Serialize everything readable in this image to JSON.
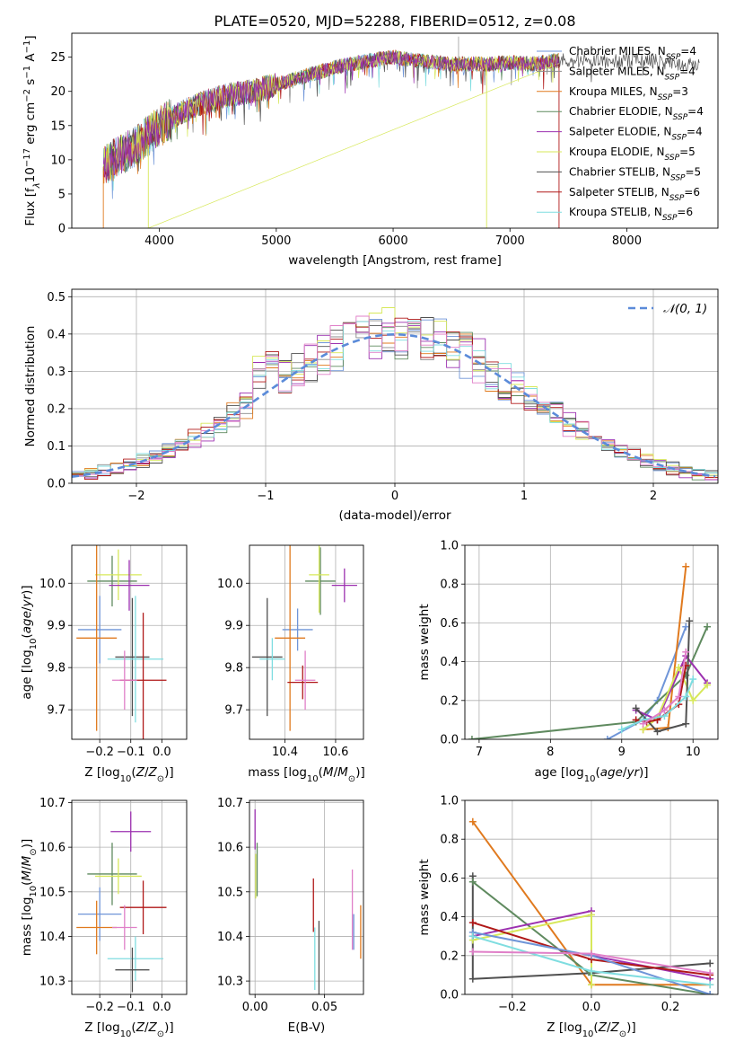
{
  "figure": {
    "title": "PLATE=0520, MJD=52288, FIBERID=0512, z=0.08"
  },
  "colors": {
    "chabrier_miles": "#6f95d8",
    "salpeter_miles": "#8c8c8c",
    "kroupa_miles": "#e07a1f",
    "chabrier_elodie": "#5f8a5f",
    "salpeter_elodie": "#9c30b0",
    "kroupa_elodie": "#d7e85a",
    "chabrier_stelib": "#505050",
    "salpeter_stelib": "#b01818",
    "kroupa_stelib": "#7fdde0",
    "extra_pink": "#e07fc8",
    "norm": "#5b8bd9",
    "grid": "#b0b0b0"
  },
  "chart_data": [
    {
      "id": "spectrum",
      "type": "line",
      "title": "PLATE=0520, MJD=52288, FIBERID=0512, z=0.08",
      "xlabel": "wavelength [Angstrom, rest frame]",
      "ylabel_main": "Flux [f",
      "ylabel_sub1": "λ",
      "ylabel_mid": "10",
      "ylabel_sup1": "−17",
      "ylabel_rest": " erg cm",
      "ylabel_sup2": "−2",
      "ylabel_rest2": " s",
      "ylabel_sup3": "−1",
      "ylabel_rest3": " A",
      "ylabel_sup4": "−1",
      "ylabel_end": "]",
      "xlim": [
        3250,
        8780
      ],
      "ylim": [
        0,
        28.5
      ],
      "xticks": [
        4000,
        5000,
        6000,
        7000,
        8000
      ],
      "yticks": [
        0,
        5,
        10,
        15,
        20,
        25
      ],
      "grid": false,
      "legend_position": "right",
      "legend": [
        {
          "name": "Chabrier MILES, N",
          "sub": "SSP",
          "tail": "=4",
          "color": "#6f95d8"
        },
        {
          "name": "Salpeter MILES, N",
          "sub": "SSP",
          "tail": "=4",
          "color": "#8c8c8c"
        },
        {
          "name": "Kroupa MILES, N",
          "sub": "SSP",
          "tail": "=3",
          "color": "#e07a1f"
        },
        {
          "name": "Chabrier ELODIE, N",
          "sub": "SSP",
          "tail": "=4",
          "color": "#5f8a5f"
        },
        {
          "name": "Salpeter ELODIE, N",
          "sub": "SSP",
          "tail": "=4",
          "color": "#9c30b0"
        },
        {
          "name": "Kroupa ELODIE, N",
          "sub": "SSP",
          "tail": "=5",
          "color": "#d7e85a"
        },
        {
          "name": "Chabrier STELIB, N",
          "sub": "SSP",
          "tail": "=5",
          "color": "#505050"
        },
        {
          "name": "Salpeter STELIB, N",
          "sub": "SSP",
          "tail": "=6",
          "color": "#b01818"
        },
        {
          "name": "Kroupa STELIB, N",
          "sub": "SSP",
          "tail": "=6",
          "color": "#7fdde0"
        }
      ],
      "continuum": [
        [
          3520,
          9
        ],
        [
          3600,
          10
        ],
        [
          3700,
          11
        ],
        [
          3800,
          12
        ],
        [
          3900,
          13.5
        ],
        [
          4000,
          15
        ],
        [
          4100,
          16
        ],
        [
          4200,
          17
        ],
        [
          4400,
          18.5
        ],
        [
          4600,
          19.5
        ],
        [
          4800,
          20
        ],
        [
          5000,
          21
        ],
        [
          5200,
          22
        ],
        [
          5500,
          23.5
        ],
        [
          5800,
          24.5
        ],
        [
          6000,
          25
        ],
        [
          6200,
          24.5
        ],
        [
          6500,
          24
        ],
        [
          6800,
          24
        ],
        [
          7000,
          24.2
        ],
        [
          7200,
          24
        ],
        [
          7400,
          24.5
        ],
        [
          7600,
          24.5
        ],
        [
          7800,
          24.5
        ],
        [
          8000,
          24.5
        ],
        [
          8200,
          24.5
        ],
        [
          8400,
          24
        ],
        [
          8620,
          24
        ]
      ]
    },
    {
      "id": "residuals",
      "type": "histogram",
      "xlabel": "(data-model)/error",
      "ylabel": "Normed distribution",
      "xlim": [
        -2.5,
        2.5
      ],
      "ylim": [
        0,
        0.52
      ],
      "xticks": [
        -2,
        -1,
        0,
        1,
        2
      ],
      "xtick_labels": [
        "−2",
        "−1",
        "0",
        "1",
        "2"
      ],
      "yticks": [
        0.0,
        0.1,
        0.2,
        0.3,
        0.4,
        0.5
      ],
      "ytick_labels": [
        "0.0",
        "0.1",
        "0.2",
        "0.3",
        "0.4",
        "0.5"
      ],
      "grid": true,
      "legend_position": "top-right",
      "legend_label": "𝒩(0, 1)",
      "bin_width": 0.1
    },
    {
      "id": "age_vs_Z",
      "type": "scatter",
      "xlabel_main": "Z [log",
      "xlabel_sub": "10",
      "xlabel_end": "(Z/Z",
      "xlabel_sun": "⊙",
      "xlabel_close": ")]",
      "ylabel_main": "age  [log",
      "ylabel_sub": "10",
      "ylabel_end": "(age/yr)]",
      "xlim": [
        -0.29,
        0.08
      ],
      "ylim": [
        9.63,
        10.09
      ],
      "xticks": [
        -0.2,
        -0.1,
        0.0
      ],
      "xtick_labels": [
        "−0.2",
        "−0.1",
        "0.0"
      ],
      "yticks": [
        9.7,
        9.8,
        9.9,
        10.0
      ],
      "ytick_labels": [
        "9.7",
        "9.8",
        "9.9",
        "10.0"
      ],
      "grid": true,
      "points": [
        {
          "x": -0.16,
          "y": 10.005,
          "xerr": 0.08,
          "yerr": 0.06,
          "color": "#5f8a5f"
        },
        {
          "x": -0.14,
          "y": 10.02,
          "xerr": 0.075,
          "yerr": 0.06,
          "color": "#d7e85a"
        },
        {
          "x": -0.105,
          "y": 9.995,
          "xerr": 0.065,
          "yerr": 0.06,
          "color": "#9c30b0"
        },
        {
          "x": -0.2,
          "y": 9.89,
          "xerr": 0.07,
          "yerr": 0.08,
          "color": "#6f95d8"
        },
        {
          "x": -0.21,
          "y": 9.87,
          "xerr": 0.065,
          "yerr": 0.22,
          "color": "#e07a1f"
        },
        {
          "x": -0.095,
          "y": 9.825,
          "xerr": 0.055,
          "yerr": 0.14,
          "color": "#505050"
        },
        {
          "x": -0.085,
          "y": 9.82,
          "xerr": 0.09,
          "yerr": 0.15,
          "color": "#7fdde0"
        },
        {
          "x": -0.06,
          "y": 9.77,
          "xerr": 0.075,
          "yerr": 0.16,
          "color": "#b01818"
        },
        {
          "x": -0.12,
          "y": 9.77,
          "xerr": 0.04,
          "yerr": 0.07,
          "color": "#e07fc8"
        }
      ]
    },
    {
      "id": "age_vs_mass",
      "type": "scatter",
      "xlabel_main": "mass [log",
      "xlabel_sub": "10",
      "xlabel_end": "(M/M",
      "xlabel_sun": "⊙",
      "xlabel_close": ")]",
      "xlim": [
        10.26,
        10.71
      ],
      "ylim": [
        9.63,
        10.09
      ],
      "xticks": [
        10.4,
        10.6
      ],
      "xtick_labels": [
        "10.4",
        "10.6"
      ],
      "yticks": [
        9.7,
        9.8,
        9.9,
        10.0
      ],
      "ytick_labels": [
        "9.7",
        "9.8",
        "9.9",
        "10.0"
      ],
      "grid": true,
      "points": [
        {
          "x": 10.54,
          "y": 10.005,
          "xerr": 0.06,
          "yerr": 0.08,
          "color": "#5f8a5f"
        },
        {
          "x": 10.535,
          "y": 10.02,
          "xerr": 0.04,
          "yerr": 0.09,
          "color": "#d7e85a"
        },
        {
          "x": 10.635,
          "y": 9.995,
          "xerr": 0.05,
          "yerr": 0.04,
          "color": "#9c30b0"
        },
        {
          "x": 10.45,
          "y": 9.89,
          "xerr": 0.06,
          "yerr": 0.05,
          "color": "#6f95d8"
        },
        {
          "x": 10.42,
          "y": 9.87,
          "xerr": 0.06,
          "yerr": 0.22,
          "color": "#e07a1f"
        },
        {
          "x": 10.33,
          "y": 9.825,
          "xerr": 0.06,
          "yerr": 0.14,
          "color": "#505050"
        },
        {
          "x": 10.35,
          "y": 9.82,
          "xerr": 0.05,
          "yerr": 0.05,
          "color": "#7fdde0"
        },
        {
          "x": 10.47,
          "y": 9.765,
          "xerr": 0.06,
          "yerr": 0.04,
          "color": "#b01818"
        },
        {
          "x": 10.48,
          "y": 9.77,
          "xerr": 0.04,
          "yerr": 0.07,
          "color": "#e07fc8"
        }
      ]
    },
    {
      "id": "mass_weight_vs_age",
      "type": "line",
      "xlabel_main": "age  [log",
      "xlabel_sub": "10",
      "xlabel_end": "(age/yr)]",
      "ylabel": "mass weight",
      "xlim": [
        6.8,
        10.35
      ],
      "ylim": [
        0,
        1.0
      ],
      "xticks": [
        7,
        8,
        9,
        10
      ],
      "xtick_labels": [
        "7",
        "8",
        "9",
        "10"
      ],
      "yticks": [
        0.0,
        0.2,
        0.4,
        0.6,
        0.8,
        1.0
      ],
      "ytick_labels": [
        "0.0",
        "0.2",
        "0.4",
        "0.6",
        "0.8",
        "1.0"
      ],
      "grid": true,
      "series": [
        {
          "color": "#6f95d8",
          "x": [
            8.8,
            9.3,
            9.5,
            9.9
          ],
          "y": [
            0.0,
            0.1,
            0.2,
            0.58
          ]
        },
        {
          "color": "#e07a1f",
          "x": [
            9.3,
            9.65,
            9.9
          ],
          "y": [
            0.05,
            0.06,
            0.89
          ]
        },
        {
          "color": "#5f8a5f",
          "x": [
            6.9,
            9.2,
            9.9,
            10.2
          ],
          "y": [
            0.0,
            0.09,
            0.33,
            0.58
          ]
        },
        {
          "color": "#9c30b0",
          "x": [
            9.2,
            9.5,
            9.9,
            10.2
          ],
          "y": [
            0.15,
            0.1,
            0.43,
            0.29
          ]
        },
        {
          "color": "#d7e85a",
          "x": [
            9.3,
            9.5,
            9.8,
            10.0,
            10.2
          ],
          "y": [
            0.05,
            0.11,
            0.37,
            0.2,
            0.28
          ]
        },
        {
          "color": "#505050",
          "x": [
            9.2,
            9.5,
            9.9,
            9.95
          ],
          "y": [
            0.16,
            0.04,
            0.08,
            0.61
          ]
        },
        {
          "color": "#b01818",
          "x": [
            9.2,
            9.35,
            9.5,
            9.8,
            9.9
          ],
          "y": [
            0.1,
            0.09,
            0.1,
            0.18,
            0.38
          ]
        },
        {
          "color": "#7fdde0",
          "x": [
            9.0,
            9.3,
            9.6,
            9.9,
            10.0
          ],
          "y": [
            0.05,
            0.1,
            0.12,
            0.22,
            0.31
          ]
        },
        {
          "color": "#e07fc8",
          "x": [
            9.3,
            9.6,
            9.8,
            9.9
          ],
          "y": [
            0.08,
            0.15,
            0.22,
            0.45
          ]
        }
      ]
    },
    {
      "id": "mass_vs_Z",
      "type": "scatter",
      "xlabel_main": "Z [log",
      "xlabel_sub": "10",
      "xlabel_end": "(Z/Z",
      "xlabel_sun": "⊙",
      "xlabel_close": ")]",
      "ylabel_main": "mass [log",
      "ylabel_sub": "10",
      "ylabel_end": "(M/M",
      "ylabel_sun": "⊙",
      "ylabel_close": ")]",
      "xlim": [
        -0.29,
        0.08
      ],
      "ylim": [
        10.27,
        10.705
      ],
      "xticks": [
        -0.2,
        -0.1,
        0.0
      ],
      "xtick_labels": [
        "−0.2",
        "−0.1",
        "0.0"
      ],
      "yticks": [
        10.3,
        10.4,
        10.5,
        10.6,
        10.7
      ],
      "ytick_labels": [
        "10.3",
        "10.4",
        "10.5",
        "10.6",
        "10.7"
      ],
      "grid": true,
      "points": [
        {
          "x": -0.1,
          "y": 10.635,
          "xerr": 0.065,
          "yerr": 0.045,
          "color": "#9c30b0"
        },
        {
          "x": -0.16,
          "y": 10.54,
          "xerr": 0.08,
          "yerr": 0.07,
          "color": "#5f8a5f"
        },
        {
          "x": -0.14,
          "y": 10.535,
          "xerr": 0.075,
          "yerr": 0.04,
          "color": "#d7e85a"
        },
        {
          "x": -0.06,
          "y": 10.465,
          "xerr": 0.075,
          "yerr": 0.06,
          "color": "#b01818"
        },
        {
          "x": -0.2,
          "y": 10.45,
          "xerr": 0.07,
          "yerr": 0.06,
          "color": "#6f95d8"
        },
        {
          "x": -0.21,
          "y": 10.42,
          "xerr": 0.065,
          "yerr": 0.06,
          "color": "#e07a1f"
        },
        {
          "x": -0.12,
          "y": 10.42,
          "xerr": 0.04,
          "yerr": 0.05,
          "color": "#e07fc8"
        },
        {
          "x": -0.085,
          "y": 10.35,
          "xerr": 0.09,
          "yerr": 0.05,
          "color": "#7fdde0"
        },
        {
          "x": -0.095,
          "y": 10.325,
          "xerr": 0.055,
          "yerr": 0.05,
          "color": "#505050"
        }
      ]
    },
    {
      "id": "mass_vs_ebv",
      "type": "scatter",
      "xlabel": "E(B-V)",
      "xlim": [
        -0.004,
        0.078
      ],
      "ylim": [
        10.27,
        10.705
      ],
      "xticks": [
        0.0,
        0.05
      ],
      "xtick_labels": [
        "0.00",
        "0.05"
      ],
      "yticks": [
        10.3,
        10.4,
        10.5,
        10.6,
        10.7
      ],
      "ytick_labels": [
        "10.3",
        "10.4",
        "10.5",
        "10.6",
        "10.7"
      ],
      "grid": true,
      "points": [
        {
          "x": 0.0,
          "y": 10.64,
          "xerr": 0,
          "yerr": 0.045,
          "color": "#9c30b0"
        },
        {
          "x": 0.0005,
          "y": 10.535,
          "xerr": 0,
          "yerr": 0.05,
          "color": "#d7e85a"
        },
        {
          "x": 0.0015,
          "y": 10.55,
          "xerr": 0,
          "yerr": 0.06,
          "color": "#5f8a5f"
        },
        {
          "x": 0.042,
          "y": 10.47,
          "xerr": 0,
          "yerr": 0.06,
          "color": "#b01818"
        },
        {
          "x": 0.043,
          "y": 10.35,
          "xerr": 0,
          "yerr": 0.07,
          "color": "#7fdde0"
        },
        {
          "x": 0.046,
          "y": 10.35,
          "xerr": 0,
          "yerr": 0.085,
          "color": "#505050"
        },
        {
          "x": 0.07,
          "y": 10.46,
          "xerr": 0,
          "yerr": 0.09,
          "color": "#e07fc8"
        },
        {
          "x": 0.071,
          "y": 10.41,
          "xerr": 0,
          "yerr": 0.04,
          "color": "#6f95d8"
        },
        {
          "x": 0.076,
          "y": 10.41,
          "xerr": 0,
          "yerr": 0.06,
          "color": "#e07a1f"
        }
      ]
    },
    {
      "id": "mass_weight_vs_Z",
      "type": "line",
      "xlabel_main": "Z [log",
      "xlabel_sub": "10",
      "xlabel_end": "(Z/Z",
      "xlabel_sun": "⊙",
      "xlabel_close": ")]",
      "ylabel": "mass weight",
      "xlim": [
        -0.32,
        0.32
      ],
      "ylim": [
        0,
        1.0
      ],
      "xticks": [
        -0.2,
        0.0,
        0.2
      ],
      "xtick_labels": [
        "−0.2",
        "0.0",
        "0.2"
      ],
      "yticks": [
        0.0,
        0.2,
        0.4,
        0.6,
        0.8,
        1.0
      ],
      "ytick_labels": [
        "0.0",
        "0.2",
        "0.4",
        "0.6",
        "0.8",
        "1.0"
      ],
      "grid": true,
      "series": [
        {
          "color": "#e07a1f",
          "x": [
            -0.3,
            0.0,
            0.3
          ],
          "y": [
            0.89,
            0.05,
            0.05
          ]
        },
        {
          "color": "#505050",
          "x": [
            -0.3,
            -0.3,
            0.0,
            0.3
          ],
          "y": [
            0.61,
            0.08,
            0.11,
            0.16
          ]
        },
        {
          "color": "#5f8a5f",
          "x": [
            -0.3,
            0.0,
            0.3
          ],
          "y": [
            0.58,
            0.1,
            0.0
          ]
        },
        {
          "color": "#9c30b0",
          "x": [
            -0.3,
            0.0,
            0.0,
            0.3
          ],
          "y": [
            0.3,
            0.43,
            0.2,
            0.08
          ]
        },
        {
          "color": "#d7e85a",
          "x": [
            -0.3,
            0.0,
            0.0
          ],
          "y": [
            0.28,
            0.41,
            0.05
          ]
        },
        {
          "color": "#b01818",
          "x": [
            -0.3,
            0.0,
            0.3
          ],
          "y": [
            0.37,
            0.18,
            0.1
          ]
        },
        {
          "color": "#6f95d8",
          "x": [
            -0.3,
            0.0,
            0.3
          ],
          "y": [
            0.32,
            0.2,
            0.0
          ]
        },
        {
          "color": "#7fdde0",
          "x": [
            -0.3,
            0.0,
            0.3
          ],
          "y": [
            0.3,
            0.12,
            0.05
          ]
        },
        {
          "color": "#e07fc8",
          "x": [
            -0.3,
            0.0,
            0.3
          ],
          "y": [
            0.22,
            0.21,
            0.11
          ]
        }
      ]
    }
  ]
}
